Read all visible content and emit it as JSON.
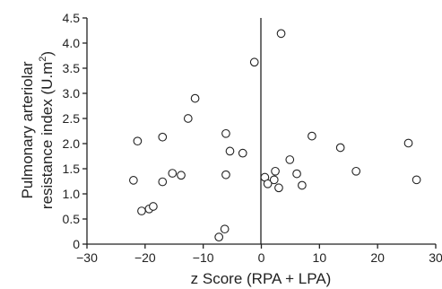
{
  "chart_data": {
    "type": "scatter",
    "title": "",
    "xlabel": "z Score (RPA + LPA)",
    "ylabel_line1": "Pulmonary arteriolar",
    "ylabel_line2_main": "resistance index (U.m",
    "ylabel_line2_sup": "2",
    "ylabel_line2_end": ")",
    "xlim": [
      -30,
      30
    ],
    "ylim": [
      0,
      4.5
    ],
    "xticks": [
      "−30",
      "−20",
      "−10",
      "0",
      "10",
      "20",
      "30"
    ],
    "xtick_values": [
      -30,
      -20,
      -10,
      0,
      10,
      20,
      30
    ],
    "yticks": [
      "0",
      "0.5",
      "1.0",
      "1.5",
      "2.0",
      "2.5",
      "3.0",
      "3.5",
      "4.0",
      "4.5"
    ],
    "ytick_values": [
      0,
      0.5,
      1.0,
      1.5,
      2.0,
      2.5,
      3.0,
      3.5,
      4.0,
      4.5
    ],
    "grid": false,
    "reference_line_x": 0,
    "marker": "open-circle",
    "series": [
      {
        "points": [
          [
            -22,
            1.27
          ],
          [
            -21.3,
            2.05
          ],
          [
            -20.6,
            0.66
          ],
          [
            -19.3,
            0.7
          ],
          [
            -18.6,
            0.75
          ],
          [
            -17,
            2.13
          ],
          [
            -17,
            1.24
          ],
          [
            -15.3,
            1.41
          ],
          [
            -13.8,
            1.37
          ],
          [
            -12.6,
            2.5
          ],
          [
            -11.4,
            2.9
          ],
          [
            -7.3,
            0.14
          ],
          [
            -6.3,
            0.3
          ],
          [
            -6.1,
            2.2
          ],
          [
            -6.1,
            1.38
          ],
          [
            -5.4,
            1.85
          ],
          [
            -3.2,
            1.81
          ],
          [
            -1.2,
            3.62
          ],
          [
            0.6,
            1.33
          ],
          [
            1.1,
            1.2
          ],
          [
            2.2,
            1.28
          ],
          [
            2.4,
            1.45
          ],
          [
            3.0,
            1.12
          ],
          [
            3.4,
            4.19
          ],
          [
            4.9,
            1.68
          ],
          [
            6.1,
            1.4
          ],
          [
            7.0,
            1.17
          ],
          [
            8.7,
            2.15
          ],
          [
            13.6,
            1.92
          ],
          [
            16.3,
            1.45
          ],
          [
            25.3,
            2.01
          ],
          [
            26.7,
            1.28
          ]
        ]
      }
    ]
  }
}
